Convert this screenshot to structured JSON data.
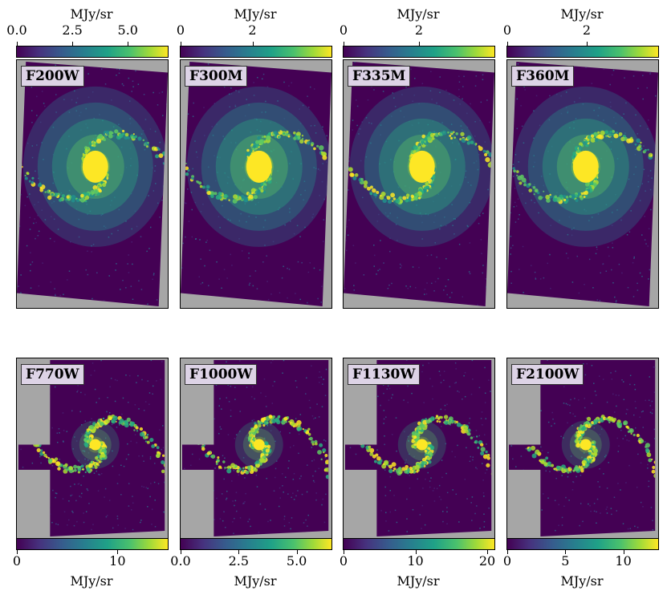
{
  "chart_data": [
    {
      "type": "heatmap",
      "filter": "F200W",
      "colorbar_label": "MJy/sr",
      "ticks": [
        "0.0",
        "2.5",
        "5.0"
      ],
      "tick_values": [
        0,
        2.5,
        5.0
      ],
      "vmax": 6.8
    },
    {
      "type": "heatmap",
      "filter": "F300M",
      "colorbar_label": "MJy/sr",
      "ticks": [
        "0",
        "2"
      ],
      "tick_values": [
        0,
        2
      ],
      "vmax": 4.2
    },
    {
      "type": "heatmap",
      "filter": "F335M",
      "colorbar_label": "MJy/sr",
      "ticks": [
        "0",
        "2"
      ],
      "tick_values": [
        0,
        2
      ],
      "vmax": 4.0
    },
    {
      "type": "heatmap",
      "filter": "F360M",
      "colorbar_label": "MJy/sr",
      "ticks": [
        "0",
        "2"
      ],
      "tick_values": [
        0,
        2
      ],
      "vmax": 3.8
    },
    {
      "type": "heatmap",
      "filter": "F770W",
      "colorbar_label": "MJy/sr",
      "ticks": [
        "0",
        "10"
      ],
      "tick_values": [
        0,
        10
      ],
      "vmax": 15
    },
    {
      "type": "heatmap",
      "filter": "F1000W",
      "colorbar_label": "MJy/sr",
      "ticks": [
        "0.0",
        "2.5",
        "5.0"
      ],
      "tick_values": [
        0,
        2.5,
        5.0
      ],
      "vmax": 6.5
    },
    {
      "type": "heatmap",
      "filter": "F1130W",
      "colorbar_label": "MJy/sr",
      "ticks": [
        "0",
        "10",
        "20"
      ],
      "tick_values": [
        0,
        10,
        20
      ],
      "vmax": 21
    },
    {
      "type": "heatmap",
      "filter": "F2100W",
      "colorbar_label": "MJy/sr",
      "ticks": [
        "0",
        "5",
        "10"
      ],
      "tick_values": [
        0,
        5,
        10
      ],
      "vmax": 13
    }
  ],
  "colors": {
    "background_mask": "#a6a6a6",
    "colormap": "viridis",
    "label_box": "#ddd3e6"
  }
}
